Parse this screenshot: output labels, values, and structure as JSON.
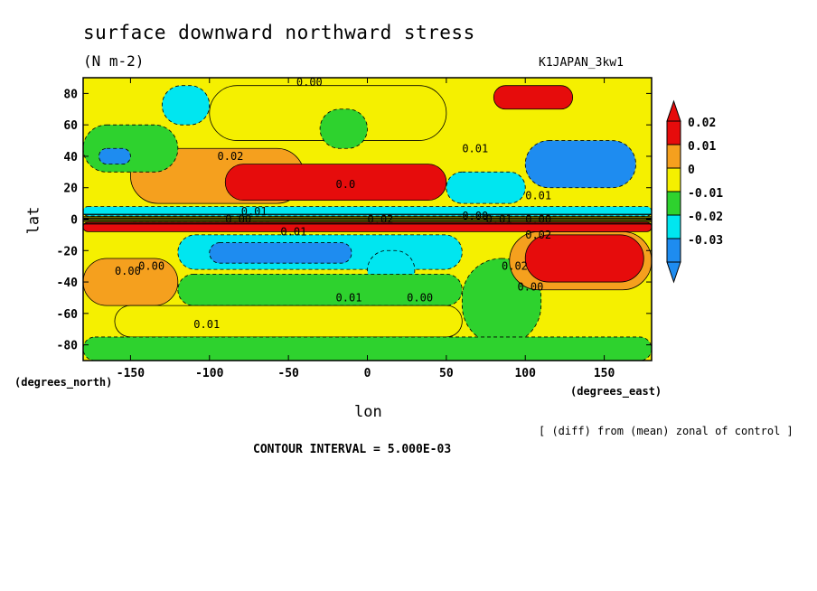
{
  "header": {
    "title": "surface downward northward stress",
    "units": "(N m-2)",
    "run_id": "K1JAPAN_3kw1"
  },
  "axes": {
    "ylabel": "lat",
    "xlabel": "lon",
    "x_units": "(degrees_east)",
    "y_units": "(degrees_north)"
  },
  "footer": {
    "note": "[ (diff) from (mean) zonal of control ]",
    "contour_interval": "CONTOUR INTERVAL = 5.000E-03"
  },
  "colors": {
    "red": "#e60c0c",
    "orange": "#f5a01e",
    "yellow": "#f5f000",
    "green": "#2ed22e",
    "cyan": "#00e6f0",
    "blue": "#1e8cf0"
  },
  "chart_data": {
    "type": "heatmap",
    "title": "surface downward northward stress",
    "units": "(N m-2)",
    "xlabel": "lon",
    "ylabel": "lat",
    "xlim": [
      -180,
      180
    ],
    "ylim": [
      -90,
      90
    ],
    "x_ticks": [
      -150,
      -100,
      -50,
      0,
      50,
      100,
      150
    ],
    "x_tick_labels": [
      "-150",
      "-100",
      "-50",
      "0",
      "50",
      "100",
      "150"
    ],
    "y_ticks": [
      80,
      60,
      40,
      20,
      0,
      -20,
      -40,
      -60,
      -80
    ],
    "y_tick_labels": [
      "80",
      "60",
      "40",
      "20",
      "0",
      "-20",
      "-40",
      "-60",
      "-80"
    ],
    "colorbar": {
      "levels": [
        0.02,
        0.01,
        0,
        -0.01,
        -0.02,
        -0.03
      ],
      "labels": [
        "0.02",
        "0.01",
        "0",
        "-0.01",
        "-0.02",
        "-0.03"
      ],
      "colors": [
        "#e60c0c",
        "#f5a01e",
        "#f5f000",
        "#2ed22e",
        "#00e6f0",
        "#1e8cf0"
      ]
    },
    "contour_interval": 0.005,
    "regions": [
      {
        "lon": [
          -150,
          -60
        ],
        "lat": [
          -5,
          -2
        ],
        "value": -0.01
      },
      {
        "lon": [
          -120,
          60
        ],
        "lat": [
          -32,
          -10
        ],
        "value": -0.025
      },
      {
        "lon": [
          -100,
          -10
        ],
        "lat": [
          -28,
          -15
        ],
        "value": -0.03
      },
      {
        "lon": [
          0,
          30
        ],
        "lat": [
          -45,
          -20
        ],
        "value": -0.025
      },
      {
        "lon": [
          60,
          110
        ],
        "lat": [
          -80,
          -25
        ],
        "value": -0.015
      },
      {
        "lon": [
          -170,
          -130
        ],
        "lat": [
          -45,
          -35
        ],
        "value": 0.02
      },
      {
        "lon": [
          -180,
          -120
        ],
        "lat": [
          -55,
          -25
        ],
        "value": 0.012
      },
      {
        "lon": [
          -120,
          60
        ],
        "lat": [
          -55,
          -35
        ],
        "value": -0.008
      },
      {
        "lon": [
          -160,
          60
        ],
        "lat": [
          -75,
          -55
        ],
        "value": 0.004
      },
      {
        "lon": [
          90,
          180
        ],
        "lat": [
          -45,
          -8
        ],
        "value": 0.012
      },
      {
        "lon": [
          100,
          175
        ],
        "lat": [
          -40,
          -10
        ],
        "value": 0.022
      },
      {
        "lon": [
          -180,
          180
        ],
        "lat": [
          -90,
          -75
        ],
        "value": -0.008
      },
      {
        "lon": [
          -150,
          -40
        ],
        "lat": [
          10,
          45
        ],
        "value": 0.012
      },
      {
        "lon": [
          -90,
          50
        ],
        "lat": [
          12,
          35
        ],
        "value": 0.022
      },
      {
        "lon": [
          -180,
          -120
        ],
        "lat": [
          30,
          60
        ],
        "value": -0.01
      },
      {
        "lon": [
          -170,
          -150
        ],
        "lat": [
          35,
          45
        ],
        "value": -0.03
      },
      {
        "lon": [
          -130,
          -100
        ],
        "lat": [
          60,
          85
        ],
        "value": -0.02
      },
      {
        "lon": [
          50,
          100
        ],
        "lat": [
          10,
          30
        ],
        "value": -0.02
      },
      {
        "lon": [
          100,
          170
        ],
        "lat": [
          20,
          50
        ],
        "value": -0.03
      },
      {
        "lon": [
          -100,
          50
        ],
        "lat": [
          50,
          85
        ],
        "value": 0.004
      },
      {
        "lon": [
          -30,
          0
        ],
        "lat": [
          45,
          70
        ],
        "value": -0.008
      },
      {
        "lon": [
          80,
          130
        ],
        "lat": [
          70,
          85
        ],
        "value": 0.02
      },
      {
        "lon": [
          -180,
          180
        ],
        "lat": [
          2,
          8
        ],
        "value": -0.02
      },
      {
        "lon": [
          -180,
          180
        ],
        "lat": [
          -8,
          -2
        ],
        "value": 0.02
      }
    ],
    "contour_labels": [
      "0.00",
      "0.01",
      "0.02",
      "0.0",
      "0.01",
      "0.00",
      "0.01",
      "0.00",
      "0.00",
      "0.01",
      "0.00",
      "0.01",
      "0.02",
      "0.02",
      "0.01",
      "0.01",
      "0.00",
      "0.00",
      "0.02",
      "0.00"
    ]
  }
}
